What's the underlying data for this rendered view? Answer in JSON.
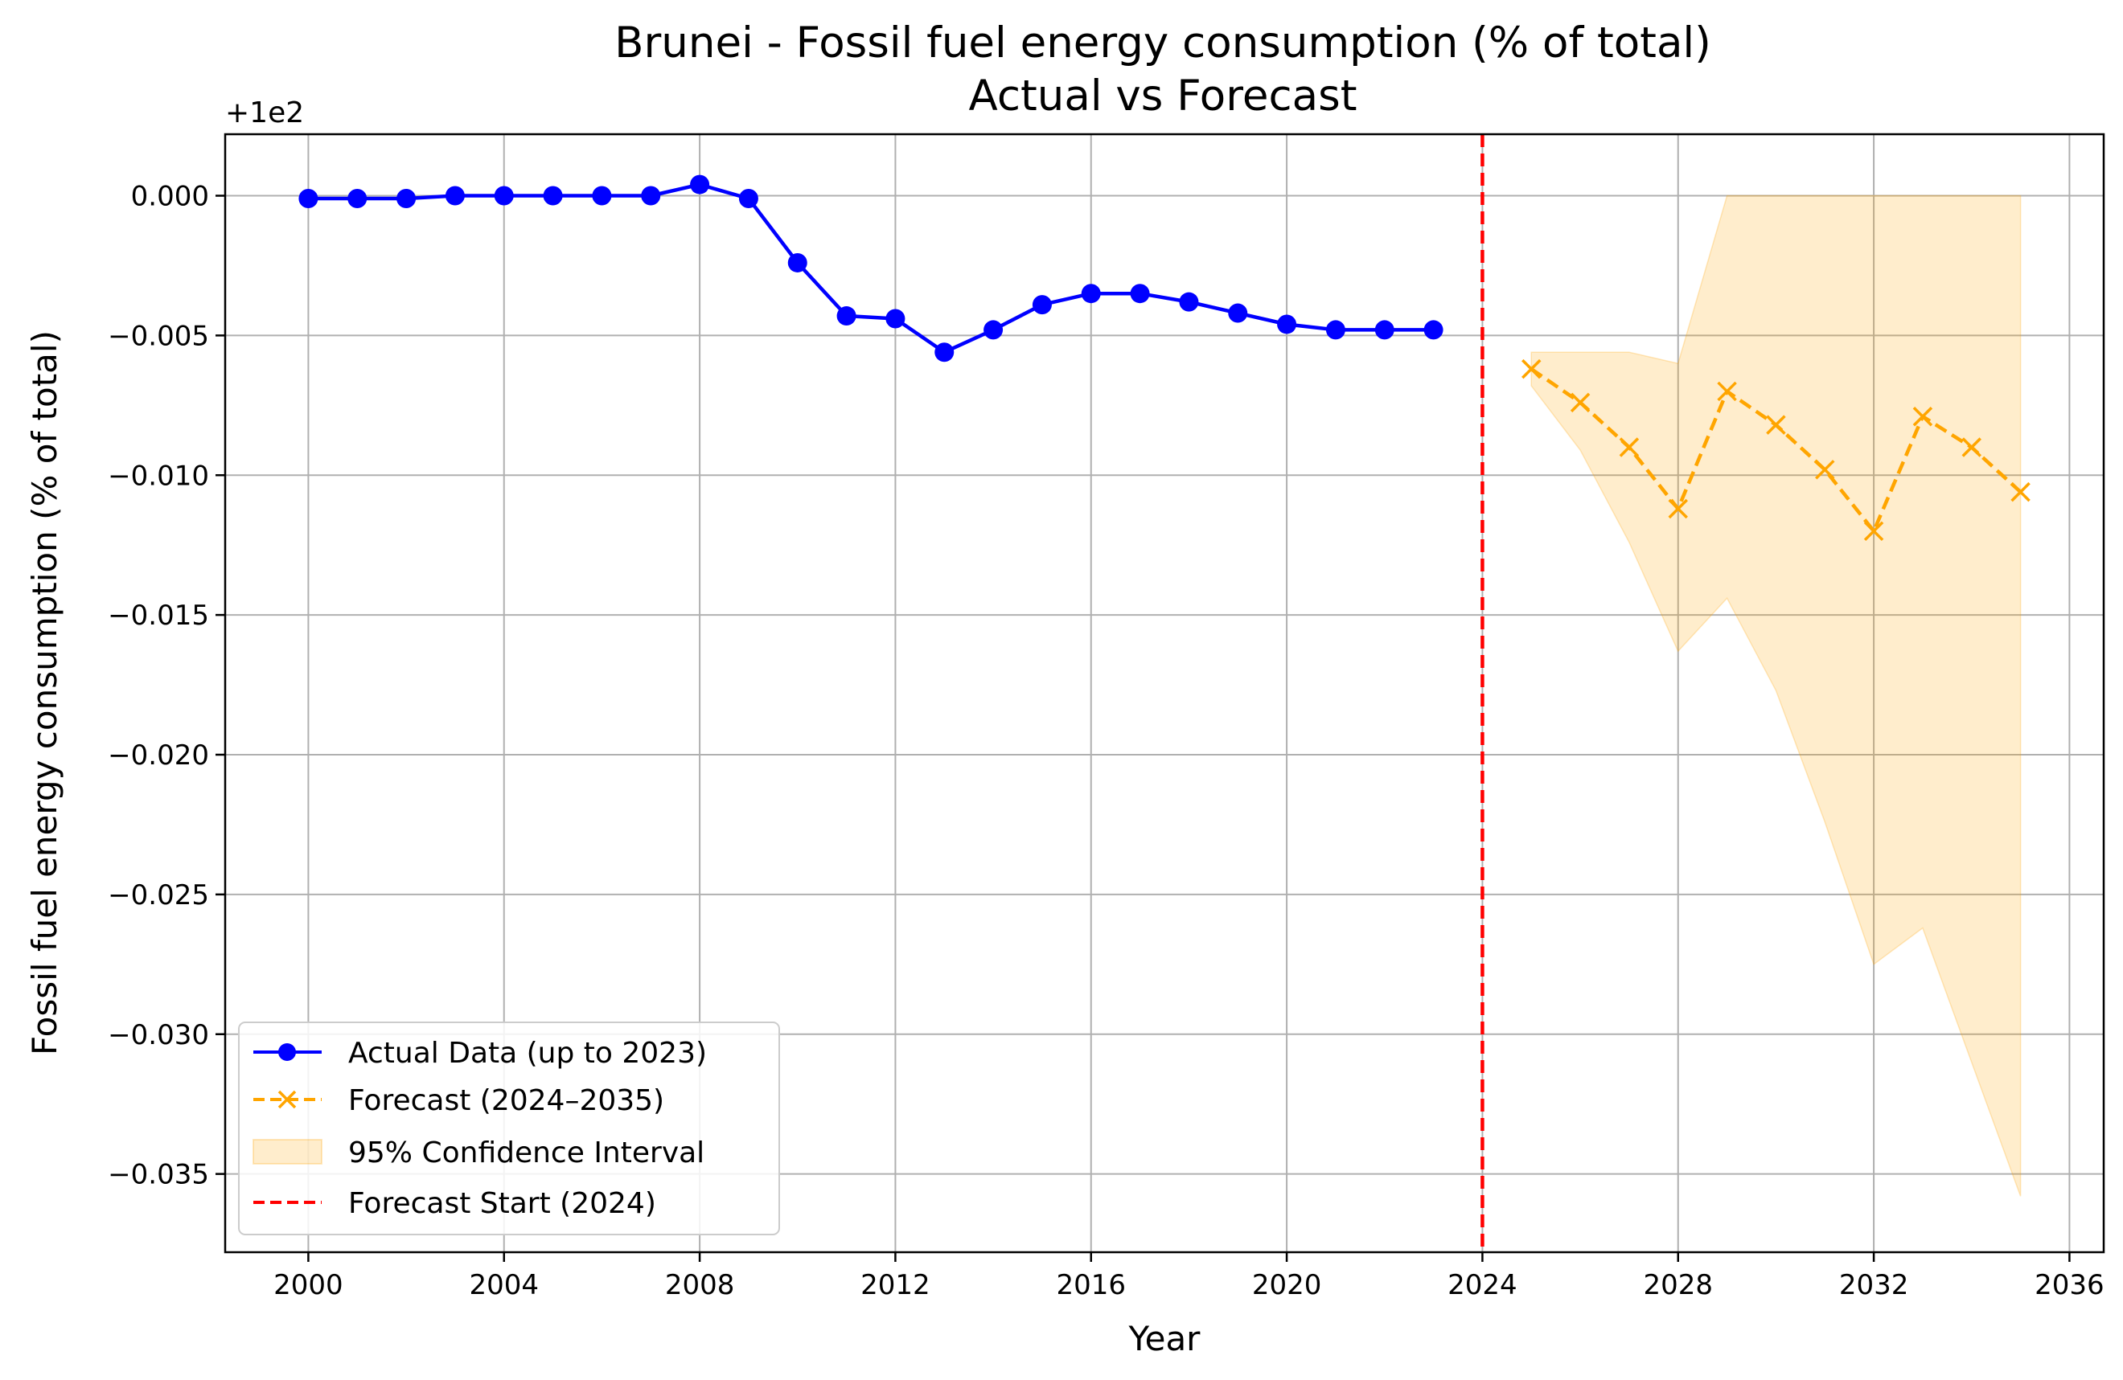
{
  "chart_data": {
    "type": "line",
    "title": "Brunei - Fossil fuel energy consumption (% of total)",
    "subtitle": "Actual vs Forecast",
    "xlabel": "Year",
    "ylabel": "Fossil fuel energy consumption (% of total)",
    "y_offset_label": "+1e2",
    "y_offset": 100,
    "xlim": [
      1998.3,
      2036.7
    ],
    "ylim": [
      -0.0378,
      0.0022
    ],
    "x_ticks": [
      2000,
      2004,
      2008,
      2012,
      2016,
      2020,
      2024,
      2028,
      2032,
      2036
    ],
    "x_tick_labels": [
      "2000",
      "2004",
      "2008",
      "2012",
      "2016",
      "2020",
      "2024",
      "2028",
      "2032",
      "2036"
    ],
    "y_ticks": [
      0.0,
      -0.005,
      -0.01,
      -0.015,
      -0.02,
      -0.025,
      -0.03,
      -0.035
    ],
    "y_tick_labels": [
      "0.000",
      "−0.005",
      "−0.010",
      "−0.015",
      "−0.020",
      "−0.025",
      "−0.030",
      "−0.035"
    ],
    "grid": true,
    "legend_position": "lower-left",
    "series": [
      {
        "name": "Actual Data (up to 2023)",
        "color": "#0000ff",
        "marker": "circle",
        "linestyle": "solid",
        "x": [
          2000,
          2001,
          2002,
          2003,
          2004,
          2005,
          2006,
          2007,
          2008,
          2009,
          2010,
          2011,
          2012,
          2013,
          2014,
          2015,
          2016,
          2017,
          2018,
          2019,
          2020,
          2021,
          2022,
          2023
        ],
        "y": [
          -0.0001,
          -0.0001,
          -0.0001,
          0.0,
          0.0,
          0.0,
          0.0,
          0.0,
          0.0004,
          -0.0001,
          -0.0024,
          -0.0043,
          -0.0044,
          -0.0056,
          -0.0048,
          -0.0039,
          -0.0035,
          -0.0035,
          -0.0038,
          -0.0042,
          -0.0046,
          -0.0048,
          -0.0048,
          -0.0048
        ]
      },
      {
        "name": "Forecast (2024–2035)",
        "color": "#ffa500",
        "marker": "x",
        "linestyle": "dashed",
        "x": [
          2025,
          2026,
          2027,
          2028,
          2029,
          2030,
          2031,
          2032,
          2033,
          2034,
          2035
        ],
        "y": [
          -0.0062,
          -0.0074,
          -0.009,
          -0.0112,
          -0.007,
          -0.0082,
          -0.0098,
          -0.012,
          -0.0079,
          -0.009,
          -0.0106
        ]
      }
    ],
    "confidence_interval": {
      "name": "95% Confidence Interval",
      "color": "#ffa500",
      "opacity": 0.2,
      "x": [
        2025,
        2026,
        2027,
        2028,
        2029,
        2030,
        2031,
        2032,
        2033,
        2034,
        2035
      ],
      "lower": [
        -0.0068,
        -0.0091,
        -0.0124,
        -0.0163,
        -0.0144,
        -0.0177,
        -0.0224,
        -0.0275,
        -0.0262,
        -0.031,
        -0.0358
      ],
      "upper": [
        -0.0056,
        -0.0056,
        -0.0056,
        -0.006,
        0.0,
        0.0,
        0.0,
        0.0,
        0.0,
        0.0,
        0.0
      ]
    },
    "vline": {
      "name": "Forecast Start (2024)",
      "x": 2024,
      "color": "#ff0000",
      "linestyle": "dashed"
    }
  }
}
